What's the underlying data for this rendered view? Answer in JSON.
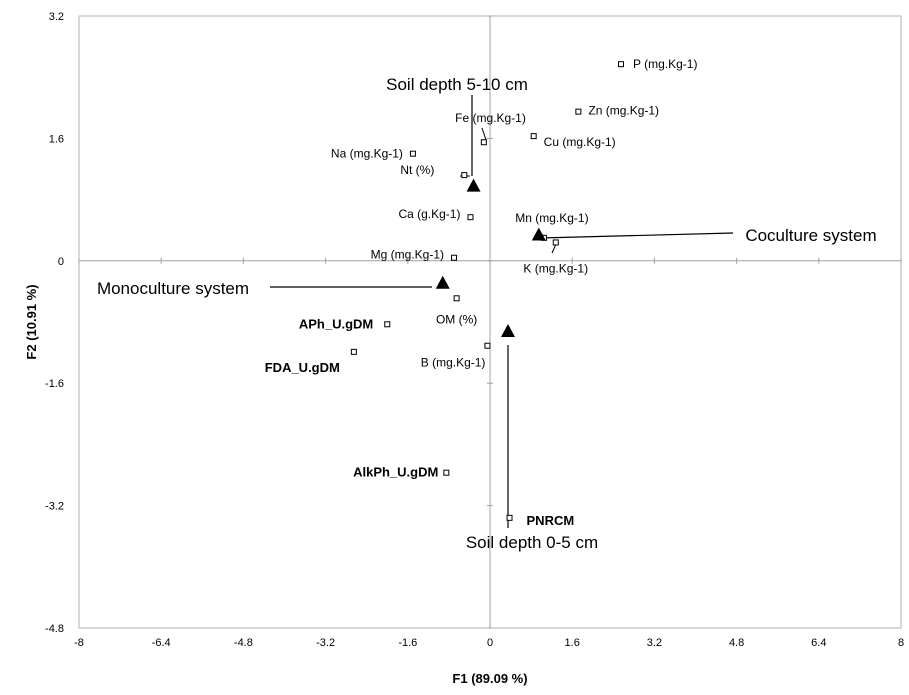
{
  "chart_data": {
    "type": "scatter",
    "title": "",
    "xlabel": "F1 (89.09 %)",
    "ylabel": "F2 (10.91 %)",
    "xlim": [
      -8,
      8
    ],
    "ylim": [
      -4.8,
      3.2
    ],
    "grid": false,
    "x_ticks": [
      "-8",
      "-6.4",
      "-4.8",
      "-3.2",
      "-1.6",
      "0",
      "1.6",
      "3.2",
      "4.8",
      "6.4",
      "8"
    ],
    "y_ticks": [
      "3.2",
      "1.6",
      "0",
      "-1.6",
      "-3.2",
      "-4.8"
    ],
    "variables": [
      {
        "name": "P (mg.Kg-1)",
        "x": 2.55,
        "y": 2.57,
        "bold": false
      },
      {
        "name": "Zn (mg.Kg-1)",
        "x": 1.72,
        "y": 1.95,
        "bold": false
      },
      {
        "name": "Fe (mg.Kg-1)",
        "x": -0.12,
        "y": 1.55,
        "bold": false
      },
      {
        "name": "Cu (mg.Kg-1)",
        "x": 0.85,
        "y": 1.63,
        "bold": false
      },
      {
        "name": "Na (mg.Kg-1)",
        "x": -1.5,
        "y": 1.4,
        "bold": false
      },
      {
        "name": "Nt (%)",
        "x": -0.5,
        "y": 1.12,
        "bold": false
      },
      {
        "name": "Ca (g.Kg-1)",
        "x": -0.38,
        "y": 0.57,
        "bold": false
      },
      {
        "name": "Mn (mg.Kg-1)",
        "x": 1.05,
        "y": 0.3,
        "bold": false
      },
      {
        "name": "K (mg.Kg-1)",
        "x": 1.28,
        "y": 0.24,
        "bold": false
      },
      {
        "name": "Mg (mg.Kg-1)",
        "x": -0.7,
        "y": 0.04,
        "bold": false
      },
      {
        "name": "OM (%)",
        "x": -0.65,
        "y": -0.49,
        "bold": false
      },
      {
        "name": "APh_U.gDM",
        "x": -2.0,
        "y": -0.83,
        "bold": true
      },
      {
        "name": "FDA_U.gDM",
        "x": -2.65,
        "y": -1.19,
        "bold": true
      },
      {
        "name": "B (mg.Kg-1)",
        "x": -0.05,
        "y": -1.11,
        "bold": false
      },
      {
        "name": "AlkPh_U.gDM",
        "x": -0.85,
        "y": -2.77,
        "bold": true
      },
      {
        "name": "PNRCM",
        "x": 0.38,
        "y": -3.36,
        "bold": true
      }
    ],
    "supplementary": [
      {
        "name": "Soil depth 5-10 cm",
        "x": -0.32,
        "y": 0.97
      },
      {
        "name": "Coculture system",
        "x": 0.95,
        "y": 0.33
      },
      {
        "name": "Monoculture system",
        "x": -0.92,
        "y": -0.3
      },
      {
        "name": "Soil depth 0-5 cm",
        "x": 0.35,
        "y": -0.93
      }
    ]
  }
}
